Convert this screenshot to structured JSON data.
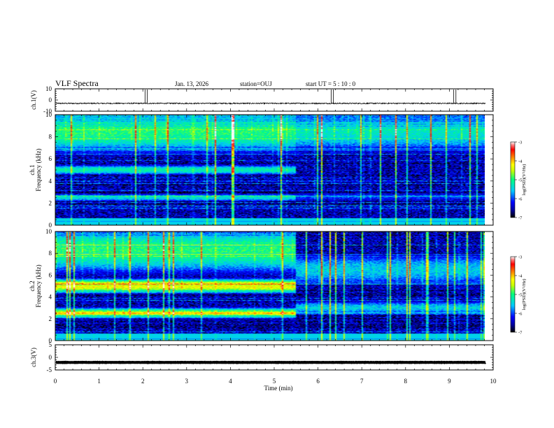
{
  "header": {
    "title": "VLF Spectra",
    "date": "Jan. 13, 2026",
    "station": "station=OUJ",
    "start_ut": "start UT =  5 : 10 : 0"
  },
  "colors": {
    "background": "#ffffff",
    "trace": "#000000",
    "colormap": [
      "#000000",
      "#0000a0",
      "#0000ff",
      "#00c8ff",
      "#00ff80",
      "#c8ff00",
      "#ffff00",
      "#ff8000",
      "#ff0000",
      "#ff8080",
      "#ffffff"
    ]
  },
  "chart_data": [
    {
      "type": "line",
      "name": "ch1-waveform",
      "ylabel": "ch.1(V)",
      "ylim": [
        -10,
        10
      ],
      "yticks": [
        "10",
        "0",
        "-10"
      ],
      "baseline": -3,
      "noise": 0.5,
      "spikes_min": [
        2.05,
        2.1,
        6.3,
        6.35,
        9.1,
        9.15
      ]
    },
    {
      "type": "heatmap",
      "name": "ch1-spectrogram",
      "ylabel": "Frequency (kHz)",
      "channel": "ch.1",
      "ylim": [
        0,
        10
      ],
      "yticks": [
        "0",
        "2",
        "4",
        "6",
        "8",
        "10"
      ],
      "x_range_min": [
        0,
        9.83
      ],
      "change_time_min": 5.5,
      "bands_before_khz": [
        {
          "f": 5.0,
          "w": 0.35,
          "level": -5.2
        },
        {
          "f": 2.5,
          "w": 0.3,
          "level": -5.4
        },
        {
          "f": 8.5,
          "w": 1.5,
          "level": -5.0
        }
      ],
      "bands_after_khz": [
        {
          "f": 8.5,
          "w": 1.5,
          "level": -5.3
        },
        {
          "f": 2.6,
          "w": 0.4,
          "level": -6.0
        }
      ],
      "colorbar": {
        "label": "log(PSD)(V²/Hz)",
        "range": [
          -7,
          -3
        ],
        "ticks": [
          "-3",
          "-4",
          "-5",
          "-6",
          "-7"
        ]
      }
    },
    {
      "type": "heatmap",
      "name": "ch2-spectrogram",
      "ylabel": "Frequency (kHz)",
      "channel": "ch.2",
      "ylim": [
        0,
        10
      ],
      "yticks": [
        "0",
        "2",
        "4",
        "6",
        "8",
        "10"
      ],
      "x_range_min": [
        0,
        9.83
      ],
      "change_time_min": 5.5,
      "bands_before_khz": [
        {
          "f": 5.0,
          "w": 0.45,
          "level": -4.3
        },
        {
          "f": 2.5,
          "w": 0.35,
          "level": -4.6
        },
        {
          "f": 8.3,
          "w": 1.6,
          "level": -5.0
        }
      ],
      "bands_after_khz": [
        {
          "f": 6.5,
          "w": 1.2,
          "level": -5.5
        },
        {
          "f": 3.0,
          "w": 0.5,
          "level": -5.5
        }
      ],
      "colorbar": {
        "label": "log(PSD)(V²/Hz)",
        "range": [
          -7,
          -3
        ],
        "ticks": [
          "-3",
          "-4",
          "-5",
          "-6",
          "-7"
        ]
      }
    },
    {
      "type": "line",
      "name": "ch3-waveform",
      "ylabel": "ch.3(V)",
      "ylim": [
        -5,
        5
      ],
      "yticks": [
        "5",
        "0",
        "-5"
      ],
      "baseline": -2,
      "noise": 0.05
    }
  ],
  "xaxis": {
    "label": "Time (min)",
    "range": [
      0,
      10
    ],
    "ticks": [
      "0",
      "1",
      "2",
      "3",
      "4",
      "5",
      "6",
      "7",
      "8",
      "9",
      "10"
    ]
  }
}
